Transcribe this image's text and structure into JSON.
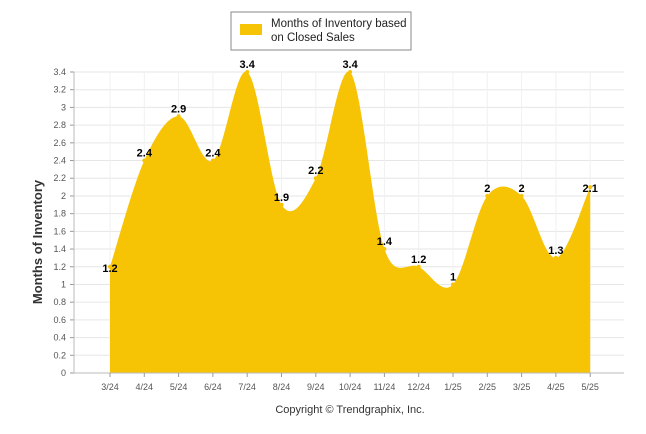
{
  "chart_data": {
    "type": "area",
    "categories": [
      "3/24",
      "4/24",
      "5/24",
      "6/24",
      "7/24",
      "8/24",
      "9/24",
      "10/24",
      "11/24",
      "12/24",
      "1/25",
      "2/25",
      "3/25",
      "4/25",
      "5/25"
    ],
    "series": [
      {
        "name": "Months of Inventory based on Closed Sales",
        "values": [
          1.2,
          2.4,
          2.9,
          2.4,
          3.4,
          1.9,
          2.2,
          3.4,
          1.4,
          1.2,
          1,
          2,
          2,
          1.3,
          2.1
        ],
        "data_labels": [
          "1.2",
          "2.4",
          "2.9",
          "2.4",
          "3.4",
          "1.9",
          "2.2",
          "3.4",
          "1.4",
          "1.2",
          "1",
          "2",
          "2",
          "1.3",
          "2.1"
        ],
        "color": "#F7C305"
      }
    ],
    "legend_lines": [
      "Months of Inventory based",
      "on Closed Sales"
    ],
    "legend_position": "top-center",
    "ylabel": "Months of Inventory",
    "xlabel": "",
    "ylim": [
      0,
      3.4
    ],
    "yticks": [
      "0",
      "0.2",
      "0.4",
      "0.6",
      "0.8",
      "1",
      "1.2",
      "1.4",
      "1.6",
      "1.8",
      "2",
      "2.2",
      "2.4",
      "2.6",
      "2.8",
      "3",
      "3.2",
      "3.4"
    ],
    "grid": true,
    "footer": "Copyright © Trendgraphix, Inc."
  }
}
